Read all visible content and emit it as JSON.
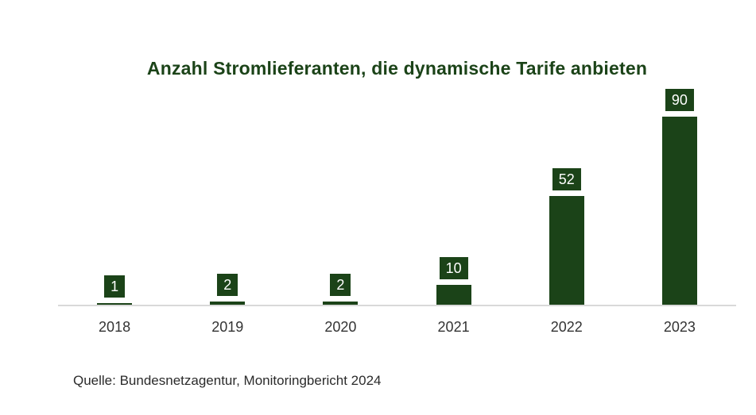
{
  "chart_data": {
    "type": "bar",
    "title": "Anzahl Stromlieferanten, die dynamische Tarife anbieten",
    "source": "Quelle: Bundesnetzagentur, Monitoringbericht 2024",
    "categories": [
      "2018",
      "2019",
      "2020",
      "2021",
      "2022",
      "2023"
    ],
    "values": [
      1,
      2,
      2,
      10,
      52,
      90
    ],
    "value_labels": [
      "1",
      "2",
      "2",
      "10",
      "52",
      "90"
    ],
    "xlabel": "",
    "ylabel": "",
    "ylim": [
      0,
      90
    ],
    "grid": false,
    "legend": false,
    "value_label_position": "boxed-above-bar",
    "colors": {
      "bar": "#1b4318",
      "title": "#1b4318",
      "value_label_bg": "#1b4318",
      "value_label_text": "#ffffff",
      "axis_line": "#d9d9d9",
      "tick_label": "#333333",
      "source_text": "#2b2b2b",
      "background": "#ffffff"
    }
  }
}
